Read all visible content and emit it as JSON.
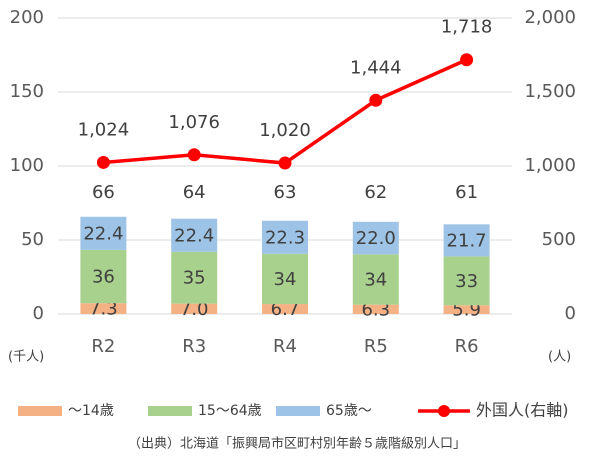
{
  "chart_data": {
    "type": "bar",
    "categories": [
      "R2",
      "R3",
      "R4",
      "R5",
      "R6"
    ],
    "series": [
      {
        "name": "～14歳",
        "color": "#f4b183",
        "values": [
          7.3,
          7.0,
          6.7,
          6.3,
          5.9
        ],
        "value_labels": [
          "7.3",
          "7.0",
          "6.7",
          "6.3",
          "5.9"
        ]
      },
      {
        "name": "15～64歳",
        "color": "#a9d18e",
        "values": [
          36,
          35,
          34,
          34,
          33
        ]
      },
      {
        "name": "65歳～",
        "color": "#9dc3e6",
        "values": [
          22.4,
          22.4,
          22.3,
          22.0,
          21.7
        ],
        "value_labels": [
          "22.4",
          "22.4",
          "22.3",
          "22.0",
          "21.7"
        ]
      },
      {
        "name": "外国人(右軸)",
        "color": "#ff0000",
        "type": "line",
        "axis": "y2",
        "values": [
          1024,
          1076,
          1020,
          1444,
          1718
        ],
        "value_labels": [
          "1,024",
          "1,076",
          "1,020",
          "1,444",
          "1,718"
        ]
      }
    ],
    "totals": [
      66,
      64,
      63,
      62,
      61
    ],
    "ylim": [
      0,
      200
    ],
    "yticks": [
      0,
      50,
      100,
      150,
      200
    ],
    "y2lim": [
      0,
      2000
    ],
    "y2ticks": [
      0,
      500,
      {
        "value": 1000,
        "label": "1,000"
      },
      {
        "value": 1500,
        "label": "1,500"
      },
      {
        "value": 2000,
        "label": "2,000"
      }
    ],
    "y_unit": "(千人)",
    "y2_unit": "(人)",
    "grid": true,
    "source": "（出典）北海道「振興局市区町村別年齢５歳階級別人口」"
  }
}
